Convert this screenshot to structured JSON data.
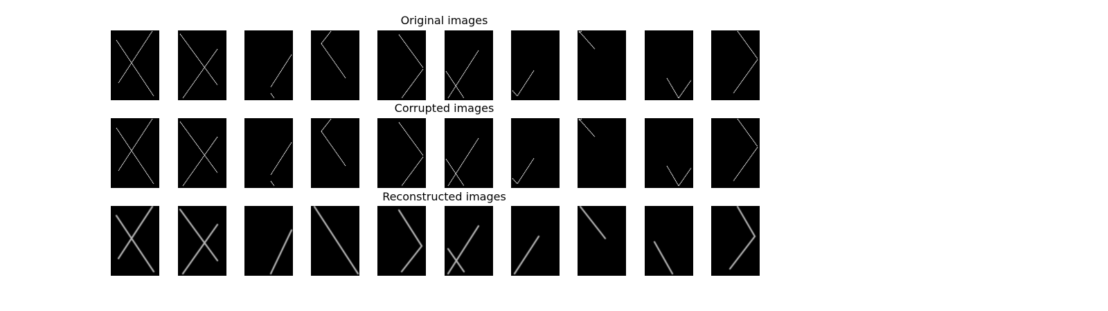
{
  "rows": [
    {
      "title": "Original images",
      "style": "sharp",
      "images": [
        {
          "segments": [
            [
              8,
              14,
              62,
              95
            ],
            [
              60,
              1,
              11,
              76
            ]
          ]
        },
        {
          "segments": [
            [
              3,
              5,
              57,
              79
            ],
            [
              57,
              27,
              7,
              98
            ]
          ]
        },
        {
          "segments": [
            [
              68,
              35,
              38,
              82
            ],
            [
              38,
              91,
              43,
              98
            ]
          ]
        },
        {
          "segments": [
            [
              29,
              1,
              15,
              19
            ],
            [
              15,
              19,
              50,
              69
            ]
          ]
        },
        {
          "segments": [
            [
              31,
              6,
              66,
              54
            ],
            [
              66,
              56,
              35,
              98
            ]
          ]
        },
        {
          "segments": [
            [
              49,
              29,
              5,
              98
            ],
            [
              2,
              59,
              28,
              98
            ]
          ]
        },
        {
          "segments": [
            [
              33,
              58,
              9,
              95
            ],
            [
              2,
              87,
              9,
              95
            ]
          ]
        },
        {
          "segments": [
            [
              2,
              1,
              25,
              27
            ],
            [
              2,
              3,
              6,
              1
            ]
          ]
        },
        {
          "segments": [
            [
              32,
              69,
              49,
              98
            ],
            [
              49,
              98,
              67,
              72
            ]
          ]
        },
        {
          "segments": [
            [
              38,
              1,
              67,
              41
            ],
            [
              67,
              42,
              32,
              91
            ]
          ]
        }
      ]
    },
    {
      "title": "Corrupted images",
      "style": "sharp",
      "images": [
        {
          "segments": [
            [
              8,
              14,
              62,
              95
            ],
            [
              60,
              1,
              11,
              76
            ]
          ]
        },
        {
          "segments": [
            [
              3,
              5,
              57,
              79
            ],
            [
              57,
              27,
              7,
              98
            ]
          ]
        },
        {
          "segments": [
            [
              68,
              35,
              38,
              82
            ],
            [
              38,
              91,
              43,
              98
            ]
          ]
        },
        {
          "segments": [
            [
              29,
              1,
              15,
              19
            ],
            [
              15,
              19,
              50,
              69
            ]
          ]
        },
        {
          "segments": [
            [
              31,
              6,
              66,
              54
            ],
            [
              66,
              56,
              35,
              98
            ]
          ]
        },
        {
          "segments": [
            [
              49,
              29,
              5,
              98
            ],
            [
              2,
              59,
              28,
              98
            ]
          ]
        },
        {
          "segments": [
            [
              33,
              58,
              9,
              95
            ],
            [
              2,
              87,
              9,
              95
            ]
          ]
        },
        {
          "segments": [
            [
              2,
              1,
              25,
              27
            ],
            [
              2,
              3,
              6,
              1
            ]
          ]
        },
        {
          "segments": [
            [
              32,
              69,
              49,
              98
            ],
            [
              49,
              98,
              67,
              72
            ]
          ]
        },
        {
          "segments": [
            [
              38,
              1,
              67,
              41
            ],
            [
              67,
              42,
              32,
              91
            ]
          ]
        }
      ]
    },
    {
      "title": "Reconstructed images",
      "style": "blurred",
      "images": [
        {
          "segments": [
            [
              8,
              14,
              62,
              95
            ],
            [
              60,
              1,
              11,
              76
            ]
          ]
        },
        {
          "segments": [
            [
              3,
              5,
              57,
              79
            ],
            [
              57,
              27,
              7,
              98
            ]
          ]
        },
        {
          "segments": [
            [
              68,
              35,
              38,
              98
            ]
          ]
        },
        {
          "segments": [
            [
              5,
              1,
              68,
              98
            ]
          ]
        },
        {
          "segments": [
            [
              31,
              6,
              64,
              58
            ],
            [
              64,
              58,
              35,
              95
            ]
          ]
        },
        {
          "segments": [
            [
              49,
              29,
              5,
              98
            ],
            [
              5,
              62,
              28,
              95
            ]
          ]
        },
        {
          "segments": [
            [
              40,
              44,
              5,
              98
            ]
          ]
        },
        {
          "segments": [
            [
              4,
              1,
              40,
              47
            ]
          ]
        },
        {
          "segments": [
            [
              14,
              52,
              40,
              98
            ]
          ]
        },
        {
          "segments": [
            [
              38,
              1,
              63,
              44
            ],
            [
              63,
              44,
              27,
              91
            ]
          ]
        }
      ]
    }
  ]
}
